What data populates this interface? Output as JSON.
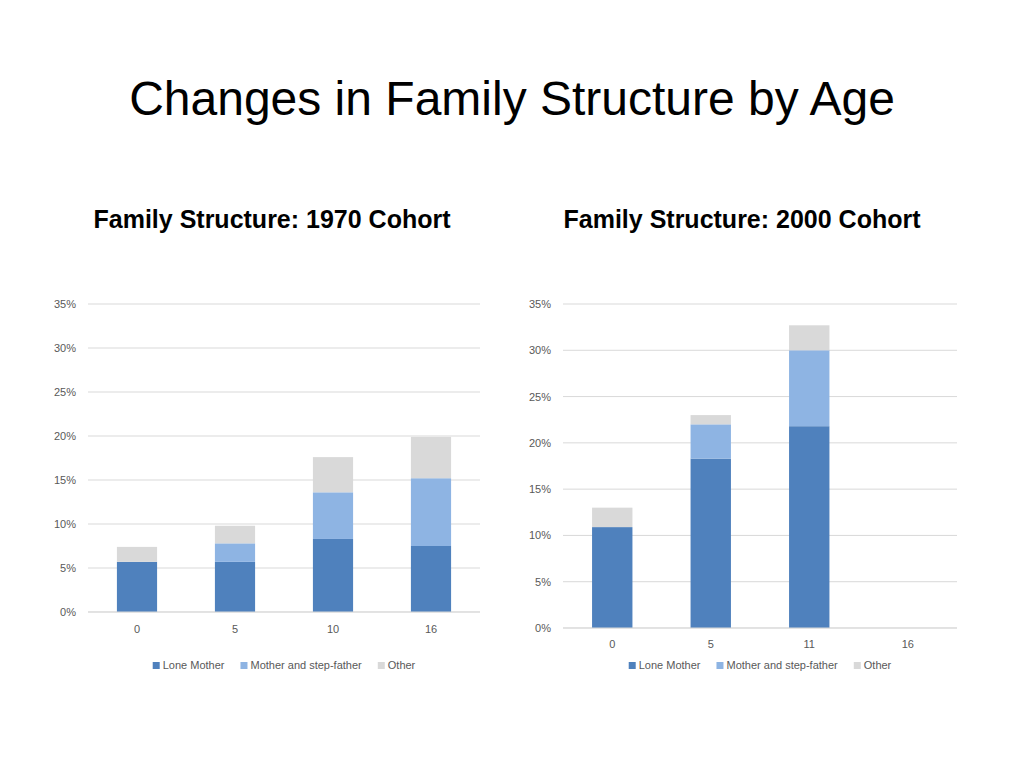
{
  "title": "Changes in Family Structure by Age",
  "chart_data": [
    {
      "type": "bar",
      "title": "Family Structure: 1970 Cohort",
      "categories": [
        "0",
        "5",
        "10",
        "16"
      ],
      "series": [
        {
          "name": "Lone Mother",
          "color": "#4f81bd",
          "values": [
            5.7,
            5.7,
            8.3,
            7.5
          ]
        },
        {
          "name": "Mother and step-father",
          "color": "#8eb4e3",
          "values": [
            0,
            2.1,
            5.3,
            7.7
          ]
        },
        {
          "name": "Other",
          "color": "#d9d9d9",
          "values": [
            1.7,
            2.0,
            4.0,
            4.7
          ]
        }
      ],
      "ylim": [
        0,
        35
      ],
      "yticks": [
        {
          "value": 0,
          "label": "0%"
        },
        {
          "value": 5,
          "label": "5%"
        },
        {
          "value": 10,
          "label": "10%"
        },
        {
          "value": 15,
          "label": "15%"
        },
        {
          "value": 20,
          "label": "20%"
        },
        {
          "value": 25,
          "label": "25%"
        },
        {
          "value": 30,
          "label": "30%"
        },
        {
          "value": 35,
          "label": "35%"
        }
      ],
      "grid": true,
      "stacked": true,
      "legend": "bottom"
    },
    {
      "type": "bar",
      "title": "Family Structure: 2000 Cohort",
      "categories": [
        "0",
        "5",
        "11",
        "16"
      ],
      "series": [
        {
          "name": "Lone Mother",
          "color": "#4f81bd",
          "values": [
            10.9,
            18.3,
            21.8,
            null
          ]
        },
        {
          "name": "Mother and step-father",
          "color": "#8eb4e3",
          "values": [
            0,
            3.7,
            8.2,
            null
          ]
        },
        {
          "name": "Other",
          "color": "#d9d9d9",
          "values": [
            2.1,
            1.0,
            2.7,
            null
          ]
        }
      ],
      "ylim": [
        0,
        35
      ],
      "yticks": [
        {
          "value": 0,
          "label": "0%"
        },
        {
          "value": 5,
          "label": "5%"
        },
        {
          "value": 10,
          "label": "10%"
        },
        {
          "value": 15,
          "label": "15%"
        },
        {
          "value": 20,
          "label": "20%"
        },
        {
          "value": 25,
          "label": "25%"
        },
        {
          "value": 30,
          "label": "30%"
        },
        {
          "value": 35,
          "label": "35%"
        }
      ],
      "grid": true,
      "stacked": true,
      "legend": "bottom"
    }
  ]
}
